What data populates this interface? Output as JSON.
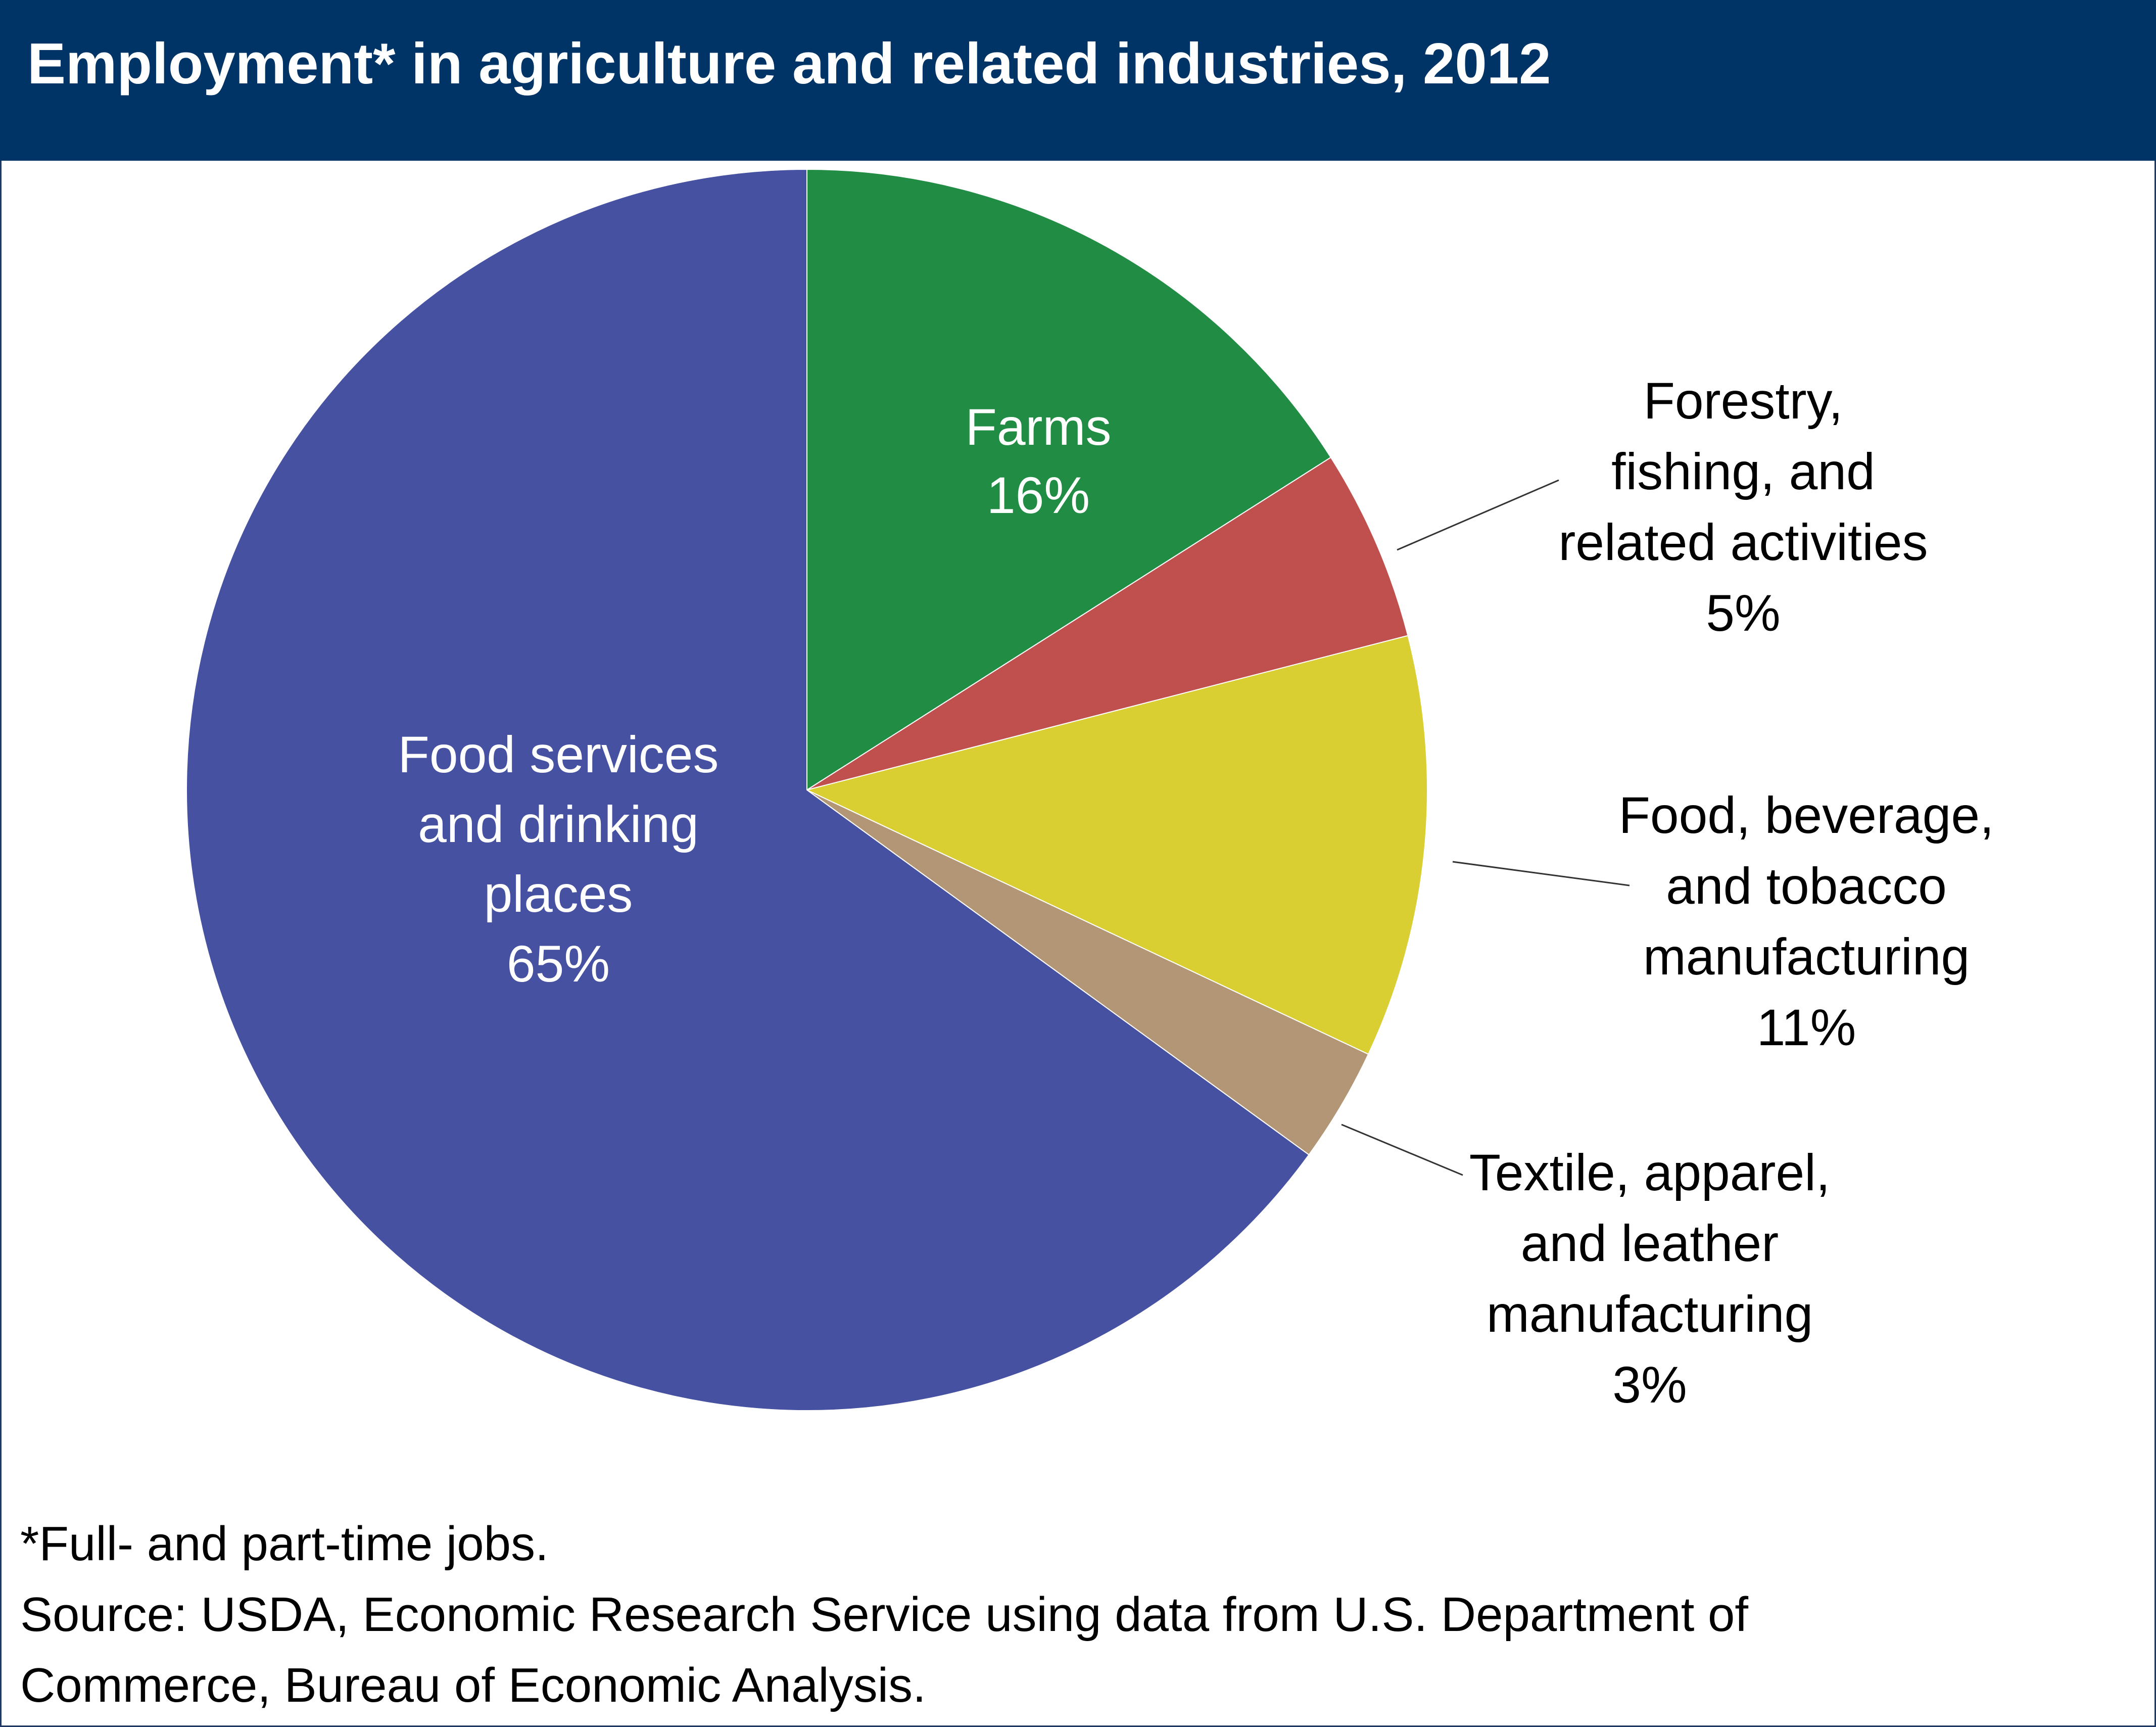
{
  "header": {
    "title": "Employment* in agriculture and related industries, 2012"
  },
  "chart_data": {
    "type": "pie",
    "title": "Employment* in agriculture and related industries, 2012",
    "unit": "%",
    "slices": [
      {
        "name": "Farms",
        "label_lines": [
          "Farms"
        ],
        "value": 16,
        "value_label": "16%",
        "color": "#218d44",
        "text_color": "#ffffff",
        "label_placement": "inside"
      },
      {
        "name": "Forestry, fishing, and related activities",
        "label_lines": [
          "Forestry,",
          "fishing, and",
          "related activities"
        ],
        "value": 5,
        "value_label": "5%",
        "color": "#c0504d",
        "text_color": "#000000",
        "label_placement": "outside"
      },
      {
        "name": "Food, beverage, and tobacco manufacturing",
        "label_lines": [
          "Food, beverage,",
          "and tobacco",
          "manufacturing"
        ],
        "value": 11,
        "value_label": "11%",
        "color": "#d9cf32",
        "text_color": "#000000",
        "label_placement": "outside"
      },
      {
        "name": "Textile, apparel, and leather manufacturing",
        "label_lines": [
          "Textile, apparel,",
          "and leather",
          "manufacturing"
        ],
        "value": 3,
        "value_label": "3%",
        "color": "#b29675",
        "text_color": "#000000",
        "label_placement": "outside"
      },
      {
        "name": "Food services and drinking places",
        "label_lines": [
          "Food services",
          "and drinking",
          "places"
        ],
        "value": 65,
        "value_label": "65%",
        "color": "#4651a2",
        "text_color": "#ffffff",
        "label_placement": "inside"
      }
    ]
  },
  "footnotes": {
    "note": "*Full- and part-time jobs.",
    "source_line1": "Source: USDA, Economic Research Service using data from U.S. Department of",
    "source_line2": "Commerce, Bureau of Economic Analysis."
  }
}
